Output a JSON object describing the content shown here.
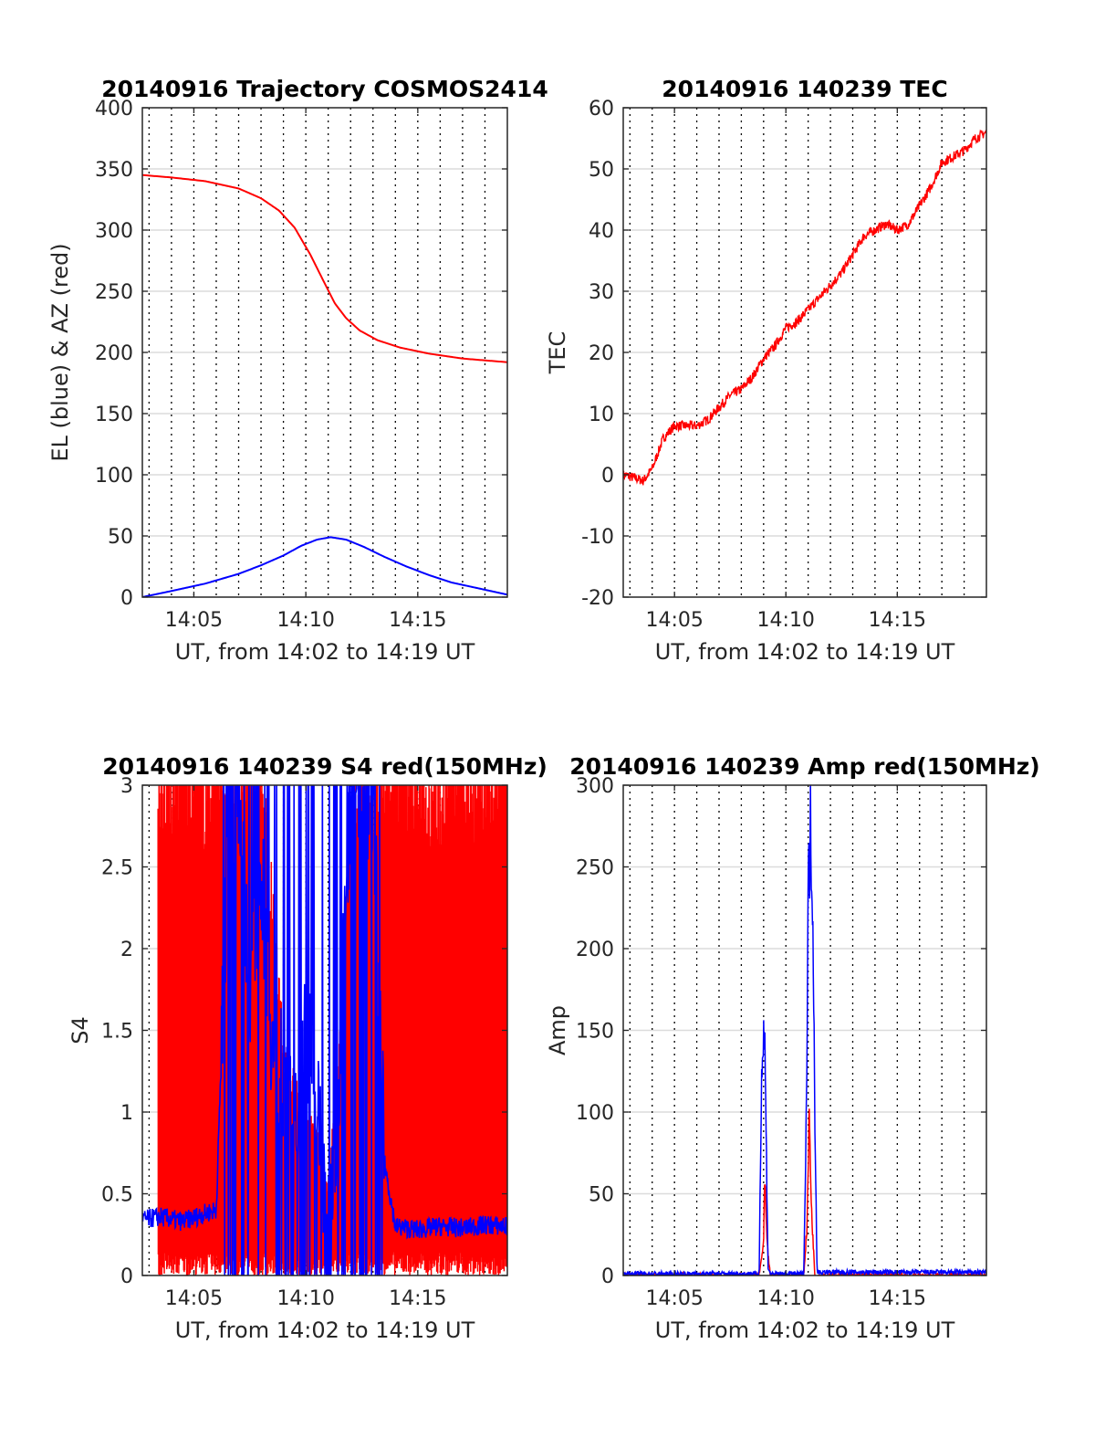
{
  "colors": {
    "az": "#ff0000",
    "el": "#0000ff",
    "tec": "#ff0000",
    "red150": "#ff0000",
    "blue": "#0000ff"
  },
  "chart_data": [
    {
      "type": "line",
      "title": "20140916 Trajectory COSMOS2414",
      "xlabel": "UT, from 14:02 to 14:19 UT",
      "ylabel": "EL (blue) & AZ (red)",
      "xlim": [
        2.7,
        19.0
      ],
      "ylim": [
        0,
        400
      ],
      "yticks": [
        0,
        50,
        100,
        150,
        200,
        250,
        300,
        350,
        400
      ],
      "xticks": [
        {
          "v": 5,
          "label": "14:05"
        },
        {
          "v": 10,
          "label": "14:10"
        },
        {
          "v": 15,
          "label": "14:15"
        }
      ],
      "grid": true,
      "series": [
        {
          "color": "#ff0000",
          "x": [
            2.7,
            4,
            5.5,
            7,
            8,
            8.8,
            9.5,
            10.2,
            10.8,
            11.3,
            11.8,
            12.4,
            13.2,
            14.2,
            15.5,
            17,
            19
          ],
          "values": [
            345,
            343,
            340,
            334,
            326,
            316,
            302,
            280,
            258,
            240,
            228,
            218,
            210,
            204,
            199,
            195,
            192
          ]
        },
        {
          "color": "#0000ff",
          "x": [
            2.7,
            4,
            5.5,
            7,
            8,
            9,
            9.8,
            10.5,
            11.1,
            11.8,
            12.6,
            13.5,
            14.5,
            15.5,
            16.5,
            17.5,
            19
          ],
          "values": [
            0,
            5,
            11,
            19,
            26,
            34,
            42,
            47,
            49,
            47,
            41,
            33,
            25,
            18,
            12,
            8,
            2
          ]
        }
      ]
    },
    {
      "type": "line",
      "title": "20140916 140239 TEC",
      "xlabel": "UT, from 14:02 to 14:19 UT",
      "ylabel": "TEC",
      "xlim": [
        2.7,
        19.0
      ],
      "ylim": [
        -20,
        60
      ],
      "yticks": [
        -20,
        -10,
        0,
        10,
        20,
        30,
        40,
        50,
        60
      ],
      "xticks": [
        {
          "v": 5,
          "label": "14:05"
        },
        {
          "v": 10,
          "label": "14:10"
        },
        {
          "v": 15,
          "label": "14:15"
        }
      ],
      "grid": true,
      "series": [
        {
          "color": "#ff0000",
          "x": [
            2.7,
            3.2,
            3.6,
            4.0,
            4.5,
            5.0,
            5.5,
            6.0,
            6.5,
            7.0,
            7.5,
            8.0,
            8.5,
            9.0,
            9.5,
            10.0,
            10.5,
            11.0,
            11.5,
            12.0,
            12.5,
            13.0,
            13.5,
            14.0,
            14.5,
            15.0,
            15.5,
            16.0,
            16.5,
            17.0,
            17.5,
            18.0,
            18.5,
            19.0
          ],
          "values": [
            0,
            -0.5,
            -1,
            1,
            6,
            8,
            8,
            8,
            9,
            11,
            13,
            14,
            16,
            19,
            21,
            24,
            25,
            27,
            29,
            31,
            33,
            36,
            39,
            40,
            41,
            40,
            41,
            44,
            47,
            51,
            52,
            53,
            55,
            56
          ]
        }
      ]
    },
    {
      "type": "line",
      "title": "20140916 140239 S4 red(150MHz)",
      "xlabel": "UT, from 14:02 to 14:19 UT",
      "ylabel": "S4",
      "xlim": [
        2.7,
        19.0
      ],
      "ylim": [
        0,
        3
      ],
      "yticks": [
        0,
        0.5,
        1,
        1.5,
        2,
        2.5,
        3
      ],
      "xticks": [
        {
          "v": 5,
          "label": "14:05"
        },
        {
          "v": 10,
          "label": "14:10"
        },
        {
          "v": 15,
          "label": "14:15"
        }
      ],
      "grid": true,
      "series": [
        {
          "color": "#ff0000",
          "x": [
            3.4,
            6.0,
            7.0,
            8.0,
            9.0,
            9.5,
            10.0,
            10.5,
            11.0,
            11.5,
            12.0,
            12.5,
            13.5,
            19.0
          ],
          "values": [
            3,
            3,
            3,
            3,
            1.3,
            1.1,
            1.0,
            0.8,
            0.5,
            1.3,
            2.5,
            3,
            3,
            3
          ]
        },
        {
          "color": "#0000ff",
          "x": [
            2.7,
            3.5,
            4.5,
            5.5,
            6.0,
            6.5,
            7.0,
            7.5,
            8.0,
            8.5,
            9.0,
            9.5,
            10.0,
            10.5,
            11.0,
            11.5,
            12.0,
            12.5,
            13.0,
            13.5,
            14.0,
            15.0,
            16.0,
            17.0,
            18.0,
            19.0
          ],
          "values": [
            0.34,
            0.36,
            0.33,
            0.38,
            0.4,
            2.5,
            3,
            1.8,
            2.5,
            1.4,
            1.2,
            0.8,
            1.5,
            1.1,
            0.2,
            1.3,
            3,
            2.8,
            3,
            0.7,
            0.3,
            0.28,
            0.3,
            0.29,
            0.31,
            0.3
          ]
        }
      ]
    },
    {
      "type": "line",
      "title": "20140916 140239 Amp red(150MHz)",
      "xlabel": "UT, from 14:02 to 14:19 UT",
      "ylabel": "Amp",
      "xlim": [
        2.7,
        19.0
      ],
      "ylim": [
        0,
        300
      ],
      "yticks": [
        0,
        50,
        100,
        150,
        200,
        250,
        300
      ],
      "xticks": [
        {
          "v": 5,
          "label": "14:05"
        },
        {
          "v": 10,
          "label": "14:10"
        },
        {
          "v": 15,
          "label": "14:15"
        }
      ],
      "grid": true,
      "series": [
        {
          "color": "#ff0000",
          "x": [
            2.7,
            8.8,
            9.0,
            9.05,
            9.15,
            9.3,
            10.8,
            10.95,
            11.05,
            11.15,
            11.3,
            19.0
          ],
          "values": [
            0,
            0,
            20,
            60,
            20,
            0,
            0,
            30,
            100,
            40,
            0,
            0
          ]
        },
        {
          "color": "#0000ff",
          "x": [
            2.7,
            5.0,
            8.8,
            8.9,
            9.0,
            9.05,
            9.1,
            9.2,
            9.3,
            10.8,
            10.9,
            11.0,
            11.1,
            11.2,
            11.3,
            11.4,
            14.0,
            16.0,
            19.0
          ],
          "values": [
            1,
            1,
            1,
            120,
            145,
            148,
            100,
            5,
            1,
            1,
            80,
            230,
            273,
            240,
            100,
            2,
            2,
            2,
            2
          ]
        }
      ]
    }
  ]
}
